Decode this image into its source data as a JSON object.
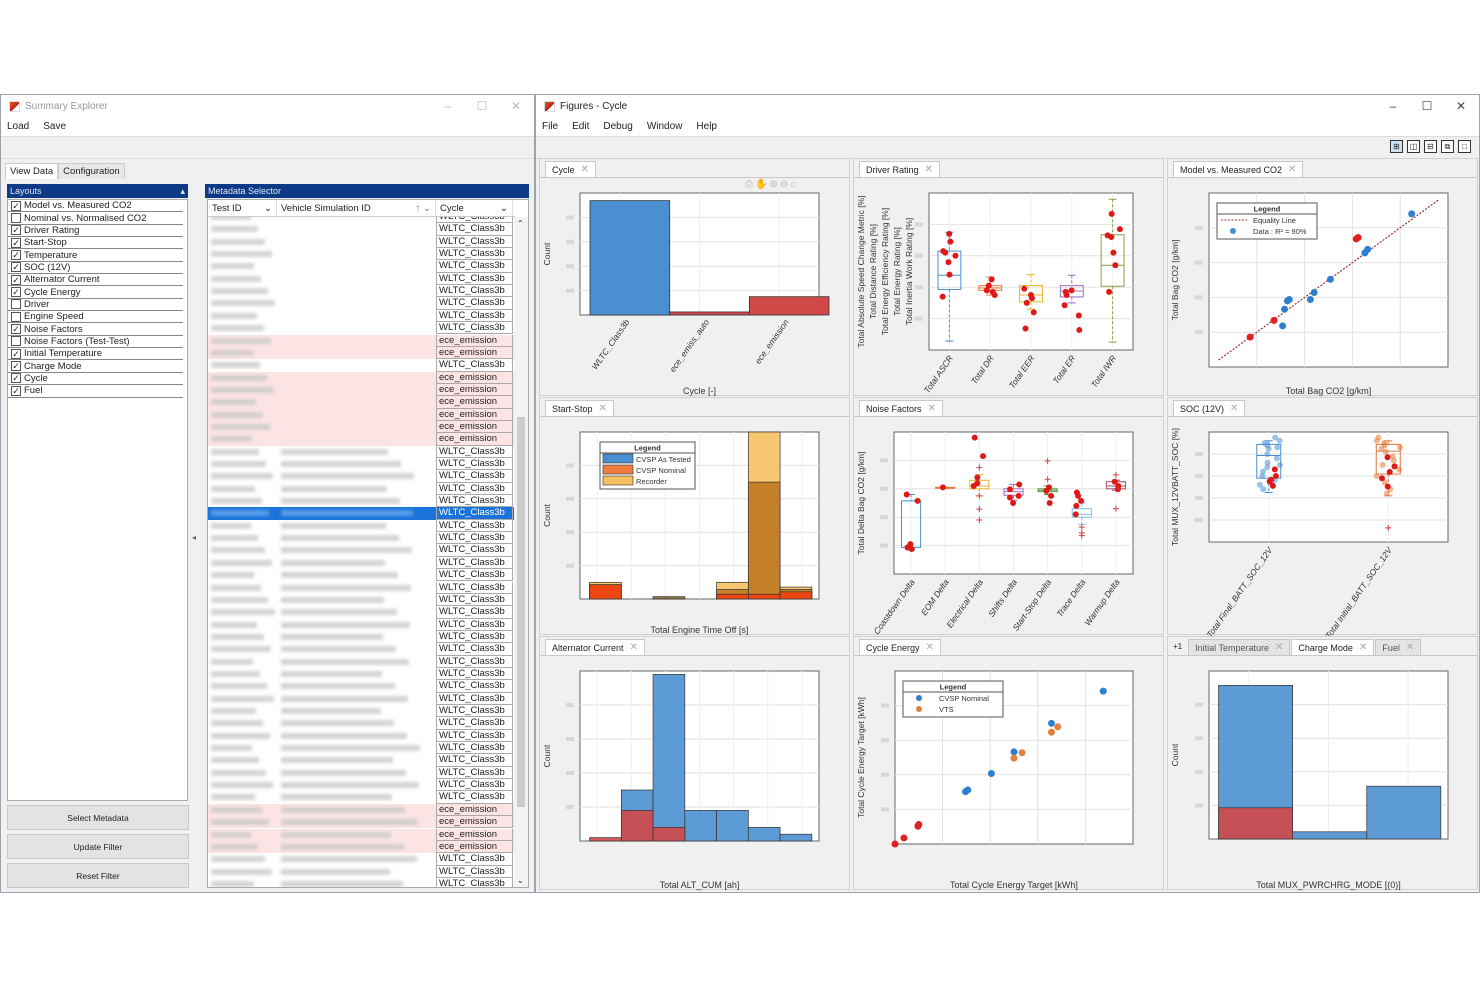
{
  "summary_explorer": {
    "title": "Summary Explorer",
    "menu": [
      "Load",
      "Save"
    ],
    "tabs": [
      "View Data",
      "Configuration"
    ],
    "layouts_header": "Layouts",
    "layouts": [
      {
        "label": "Model vs. Measured CO2",
        "checked": true
      },
      {
        "label": "Nominal vs. Normalised CO2",
        "checked": false
      },
      {
        "label": "Driver Rating",
        "checked": true
      },
      {
        "label": "Start-Stop",
        "checked": true
      },
      {
        "label": "Temperature",
        "checked": true
      },
      {
        "label": "SOC (12V)",
        "checked": true
      },
      {
        "label": "Alternator Current",
        "checked": true
      },
      {
        "label": "Cycle Energy",
        "checked": true
      },
      {
        "label": "Driver",
        "checked": false
      },
      {
        "label": "Engine Speed",
        "checked": false
      },
      {
        "label": "Noise Factors",
        "checked": true
      },
      {
        "label": "Noise Factors (Test-Test)",
        "checked": false
      },
      {
        "label": "Initial Temperature",
        "checked": true
      },
      {
        "label": "Charge Mode",
        "checked": true
      },
      {
        "label": "Cycle",
        "checked": true
      },
      {
        "label": "Fuel",
        "checked": true
      }
    ],
    "metadata_header": "Metadata Selector",
    "columns": [
      "Test ID",
      "Vehicle Simulation ID",
      "Cycle"
    ],
    "selected_row": 24,
    "row_cycles": [
      "WLTC_Class3b",
      "WLTC_Class3b",
      "WLTC_Class3b",
      "WLTC_Class3b",
      "WLTC_Class3b",
      "WLTC_Class3b",
      "WLTC_Class3b",
      "WLTC_Class3b",
      "WLTC_Class3b",
      "WLTC_Class3b",
      "ece_emission",
      "ece_emission",
      "WLTC_Class3b",
      "ece_emission",
      "ece_emission",
      "ece_emission",
      "ece_emission",
      "ece_emission",
      "ece_emission",
      "WLTC_Class3b",
      "WLTC_Class3b",
      "WLTC_Class3b",
      "WLTC_Class3b",
      "WLTC_Class3b",
      "WLTC_Class3b",
      "WLTC_Class3b",
      "WLTC_Class3b",
      "WLTC_Class3b",
      "WLTC_Class3b",
      "WLTC_Class3b",
      "WLTC_Class3b",
      "WLTC_Class3b",
      "WLTC_Class3b",
      "WLTC_Class3b",
      "WLTC_Class3b",
      "WLTC_Class3b",
      "WLTC_Class3b",
      "WLTC_Class3b",
      "WLTC_Class3b",
      "WLTC_Class3b",
      "WLTC_Class3b",
      "WLTC_Class3b",
      "WLTC_Class3b",
      "WLTC_Class3b",
      "WLTC_Class3b",
      "WLTC_Class3b",
      "WLTC_Class3b",
      "WLTC_Class3b",
      "ece_emission",
      "ece_emission",
      "ece_emission",
      "ece_emission",
      "WLTC_Class3b",
      "WLTC_Class3b",
      "WLTC_Class3b"
    ],
    "buttons": [
      "Select Metadata",
      "Update Filter",
      "Reset Filter"
    ]
  },
  "figures": {
    "title": "Figures - Cycle",
    "menu": [
      "File",
      "Edit",
      "Debug",
      "Window",
      "Help"
    ],
    "panels": [
      {
        "tabs": [
          "Cycle"
        ]
      },
      {
        "tabs": [
          "Driver Rating"
        ]
      },
      {
        "tabs": [
          "Model vs. Measured CO2"
        ]
      },
      {
        "tabs": [
          "Start-Stop"
        ]
      },
      {
        "tabs": [
          "Noise Factors"
        ]
      },
      {
        "tabs": [
          "SOC (12V)"
        ]
      },
      {
        "tabs": [
          "Alternator Current"
        ]
      },
      {
        "tabs": [
          "Cycle Energy"
        ]
      },
      {
        "tabs": [
          "Initial Temperature",
          "Charge Mode",
          "Fuel"
        ],
        "active": 1,
        "overflow": "+1"
      }
    ]
  },
  "colors": {
    "blue": "#4a90d0",
    "red": "#d04848",
    "orange": "#f07b40",
    "yellow": "#f5c060",
    "selection": "#1a73d9",
    "header": "#0c3a86"
  },
  "chart_data": [
    {
      "type": "bar",
      "xlabel": "Cycle [-]",
      "ylabel": "Count",
      "categories": [
        "WLTC_Class3b",
        "ece_emiss_auto",
        "ece_emission"
      ],
      "values": [
        75,
        2,
        12
      ],
      "bar_colors": [
        "#4a90d0",
        "#d04848",
        "#d04848"
      ],
      "ylim": [
        0,
        80
      ],
      "grid": true
    },
    {
      "type": "box",
      "ylabel": [
        "Total Absolute Speed Change Metric [%]",
        "Total Distance Rating [%]",
        "Total Energy Efficiency Rating [%]",
        "Total Energy Rating [%]",
        "Total Inertia Work Rating [%]"
      ],
      "categories": [
        "Total ASCR",
        "Total DR",
        "Total EER",
        "Total ER",
        "Total IWR"
      ],
      "ylim": [
        0,
        100
      ],
      "grid": true,
      "groups": [
        {
          "color": "#4a90d0",
          "q1": 38.5,
          "med": 47.6,
          "q3": 63,
          "lo": 5.7,
          "hi": 75,
          "points": [
            74,
            69,
            63,
            62,
            56,
            48,
            34,
            60
          ],
          "outliers": []
        },
        {
          "color": "#e07b39",
          "q1": 38,
          "med": 39.5,
          "q3": 41,
          "lo": 35,
          "hi": 46.5,
          "points": [
            45,
            41,
            38,
            35,
            37
          ],
          "outliers": []
        },
        {
          "color": "#e6b422",
          "q1": 30.7,
          "med": 35,
          "q3": 41,
          "lo": 26,
          "hi": 48,
          "points": [
            39,
            35,
            30,
            24,
            13.7,
            33
          ],
          "outliers": []
        },
        {
          "color": "#9c6fc0",
          "q1": 33.8,
          "med": 37.6,
          "q3": 41,
          "lo": 30,
          "hi": 47.6,
          "points": [
            38,
            35,
            28.5,
            22,
            12.7,
            37
          ],
          "outliers": []
        },
        {
          "color": "#8aa040",
          "q1": 40.6,
          "med": 54,
          "q3": 73.4,
          "lo": 5,
          "hi": 96,
          "points": [
            86.7,
            77,
            73,
            72,
            62,
            54,
            37
          ],
          "outliers": []
        }
      ]
    },
    {
      "type": "scatter",
      "xlabel": "Total Bag CO2 [g/km]",
      "ylabel": "Total Bag CO2 [g/km]",
      "xlim": [
        50,
        300
      ],
      "ylim": [
        50,
        300
      ],
      "grid": true,
      "legend": {
        "title": "Legend",
        "position": "top-left",
        "entries": [
          {
            "label": "Equality Line",
            "color": "#a03030",
            "style": "dotted-line"
          },
          {
            "label": "Data : R² = 90%",
            "color": "#4a90d0",
            "style": "marker"
          }
        ]
      },
      "line": [
        [
          60,
          60
        ],
        [
          290,
          290
        ]
      ],
      "series": [
        {
          "name": "Data : R² = 90%",
          "color": "#2f7fd0",
          "points": [
            [
              127,
              109
            ],
            [
              129,
              133
            ],
            [
              132,
              145
            ],
            [
              134,
              147
            ],
            [
              156,
              147
            ],
            [
              160,
              157
            ],
            [
              177,
              176
            ],
            [
              213,
              214
            ],
            [
              216,
              219
            ],
            [
              262,
              270
            ]
          ]
        },
        {
          "color": "#e02020",
          "points": [
            [
              93,
              93
            ],
            [
              118,
              117
            ],
            [
              204,
              234
            ],
            [
              206,
              236
            ]
          ]
        }
      ]
    },
    {
      "type": "histogram",
      "xlabel": "Total Engine Time Off [s]",
      "ylabel": "Count",
      "bins": 7,
      "ylim": [
        0,
        70
      ],
      "grid": true,
      "legend": {
        "title": "Legend",
        "position": "top-left",
        "entries": [
          {
            "label": "CVSP As Tested",
            "color": "#4a90d0"
          },
          {
            "label": "CVSP Nominal",
            "color": "#f07b40"
          },
          {
            "label": "Recorder",
            "color": "#f5c060"
          }
        ]
      },
      "series": [
        {
          "name": "Recorder",
          "color": "#f5c060",
          "values": [
            7,
            0,
            1,
            0,
            7,
            70,
            5
          ]
        },
        {
          "name": "CVSP Nominal",
          "color": "#c07820",
          "values": [
            6,
            0,
            0.5,
            0,
            4,
            49,
            4
          ]
        },
        {
          "name": "CVSP As Tested",
          "color": "#f04010",
          "values": [
            6,
            0,
            0,
            0,
            2,
            2,
            3
          ]
        }
      ]
    },
    {
      "type": "box",
      "ylabel": [
        "Total Delta Bag CO2 [g/km]"
      ],
      "categories": [
        "Coastdown Delta",
        "EOM Delta",
        "Electrical Delta",
        "Shifts Delta",
        "Start-Stop Delta",
        "Trace Delta",
        "Warmup Delta"
      ],
      "ylim": [
        0,
        100
      ],
      "grid": true,
      "groups": [
        {
          "color": "#4a90d0",
          "q1": 18.7,
          "med": 18.7,
          "q3": 51.5,
          "lo": 17,
          "hi": 56,
          "points": [
            56,
            51.5,
            21,
            18.7,
            17.6
          ],
          "outliers": []
        },
        {
          "color": "#e07b39",
          "q1": 61,
          "med": 61,
          "q3": 61,
          "lo": 61,
          "hi": 61,
          "points": [
            61
          ],
          "outliers": []
        },
        {
          "color": "#e6b422",
          "q1": 60,
          "med": 62,
          "q3": 66,
          "lo": 55,
          "hi": 70,
          "points": [
            96,
            83,
            68,
            64,
            62
          ],
          "outliers": [
            75,
            55,
            45.7,
            38
          ]
        },
        {
          "color": "#9c6fc0",
          "q1": 55.5,
          "med": 58,
          "q3": 60,
          "lo": 52,
          "hi": 63,
          "points": [
            63,
            59.7,
            55,
            50,
            53.9
          ],
          "outliers": []
        },
        {
          "color": "#50a040",
          "q1": 58,
          "med": 59,
          "q3": 60,
          "lo": 56,
          "hi": 62,
          "points": [
            61,
            58.5,
            55,
            50
          ],
          "outliers": [
            79.6,
            66.7
          ]
        },
        {
          "color": "#7ec0e8",
          "q1": 40,
          "med": 42,
          "q3": 46,
          "lo": 35,
          "hi": 50,
          "points": [
            57.4,
            55,
            51.5,
            48,
            42
          ],
          "outliers": [
            33,
            29,
            27
          ]
        },
        {
          "color": "#a05070",
          "q1": 60,
          "med": 62,
          "q3": 65,
          "lo": 59,
          "hi": 66,
          "points": [
            65,
            62,
            59.7
          ],
          "outliers": [
            69.8,
            46
          ]
        }
      ]
    },
    {
      "type": "box",
      "ylabel": [
        "Total MUX_12VBATT_SOC [%]"
      ],
      "categories": [
        "Total Final_BATT_SOC_12V",
        "Total Initial_BATT_SOC_12V"
      ],
      "ylim": [
        0,
        100
      ],
      "grid": true,
      "groups": [
        {
          "color": "#4a90d0",
          "q1": 58,
          "med": 78.6,
          "q3": 88.7,
          "lo": 45,
          "hi": 92,
          "points": [
            60,
            66,
            51,
            56.6,
            55
          ],
          "cloud": [
            92,
            90,
            88,
            85,
            80,
            76,
            72,
            68,
            64,
            60,
            56,
            52,
            48,
            95,
            86,
            70
          ],
          "outliers": []
        },
        {
          "color": "#e07b39",
          "q1": 61.8,
          "med": 82.6,
          "q3": 88.7,
          "lo": 42,
          "hi": 92,
          "points": [
            77,
            68.8,
            63.6,
            50.5,
            58
          ],
          "cloud": [
            92,
            90,
            88,
            85,
            82,
            78,
            74,
            70,
            66,
            60,
            54,
            48,
            44,
            95,
            86
          ],
          "outliers": [
            12.8
          ]
        }
      ]
    },
    {
      "type": "histogram",
      "xlabel": "Total ALT_CUM [ah]",
      "ylabel": "Count",
      "bins": 7,
      "ylim": [
        0,
        50
      ],
      "grid": true,
      "series": [
        {
          "color": "#4a90d0",
          "values": [
            0,
            15,
            49,
            9,
            9,
            4,
            2
          ]
        },
        {
          "color": "#d04848",
          "values": [
            1,
            9,
            4,
            0,
            0,
            0,
            0
          ]
        }
      ]
    },
    {
      "type": "scatter",
      "xlabel": "Total Cycle Energy Target [kWh]",
      "ylabel": "Total Cycle Energy Target [kWh]",
      "xlim": [
        1,
        9
      ],
      "ylim": [
        1,
        9
      ],
      "grid": true,
      "legend": {
        "title": "Legend",
        "position": "top-left",
        "entries": [
          {
            "label": "CVSP Nominal",
            "color": "#2f7fd0",
            "style": "marker"
          },
          {
            "label": "VTS",
            "color": "#e08040",
            "style": "marker"
          }
        ]
      },
      "series": [
        {
          "name": "CVSP Nominal",
          "color": "#2f7fd0",
          "points": [
            [
              8.0,
              8.07
            ],
            [
              6.26,
              6.58
            ],
            [
              5.0,
              5.26
            ],
            [
              4.24,
              4.26
            ],
            [
              3.37,
              3.42
            ],
            [
              3.45,
              3.5
            ]
          ]
        },
        {
          "name": "VTS",
          "color": "#e08040",
          "points": [
            [
              6.26,
              6.17
            ],
            [
              6.47,
              6.42
            ],
            [
              5.0,
              4.97
            ],
            [
              5.27,
              5.22
            ]
          ]
        },
        {
          "color": "#e02020",
          "points": [
            [
              1,
              1
            ],
            [
              1.3,
              1.28
            ],
            [
              1.77,
              1.82
            ],
            [
              1.8,
              1.9
            ]
          ]
        }
      ]
    },
    {
      "type": "histogram",
      "xlabel": "Total MUX_PWRCHRG_MODE [(0)]",
      "ylabel": "Count",
      "bins": 3,
      "ylim": [
        0,
        70
      ],
      "grid": true,
      "series": [
        {
          "color": "#4a90d0",
          "values": [
            64,
            3,
            22
          ]
        },
        {
          "color": "#d04848",
          "values": [
            13,
            0,
            0
          ]
        }
      ]
    }
  ]
}
